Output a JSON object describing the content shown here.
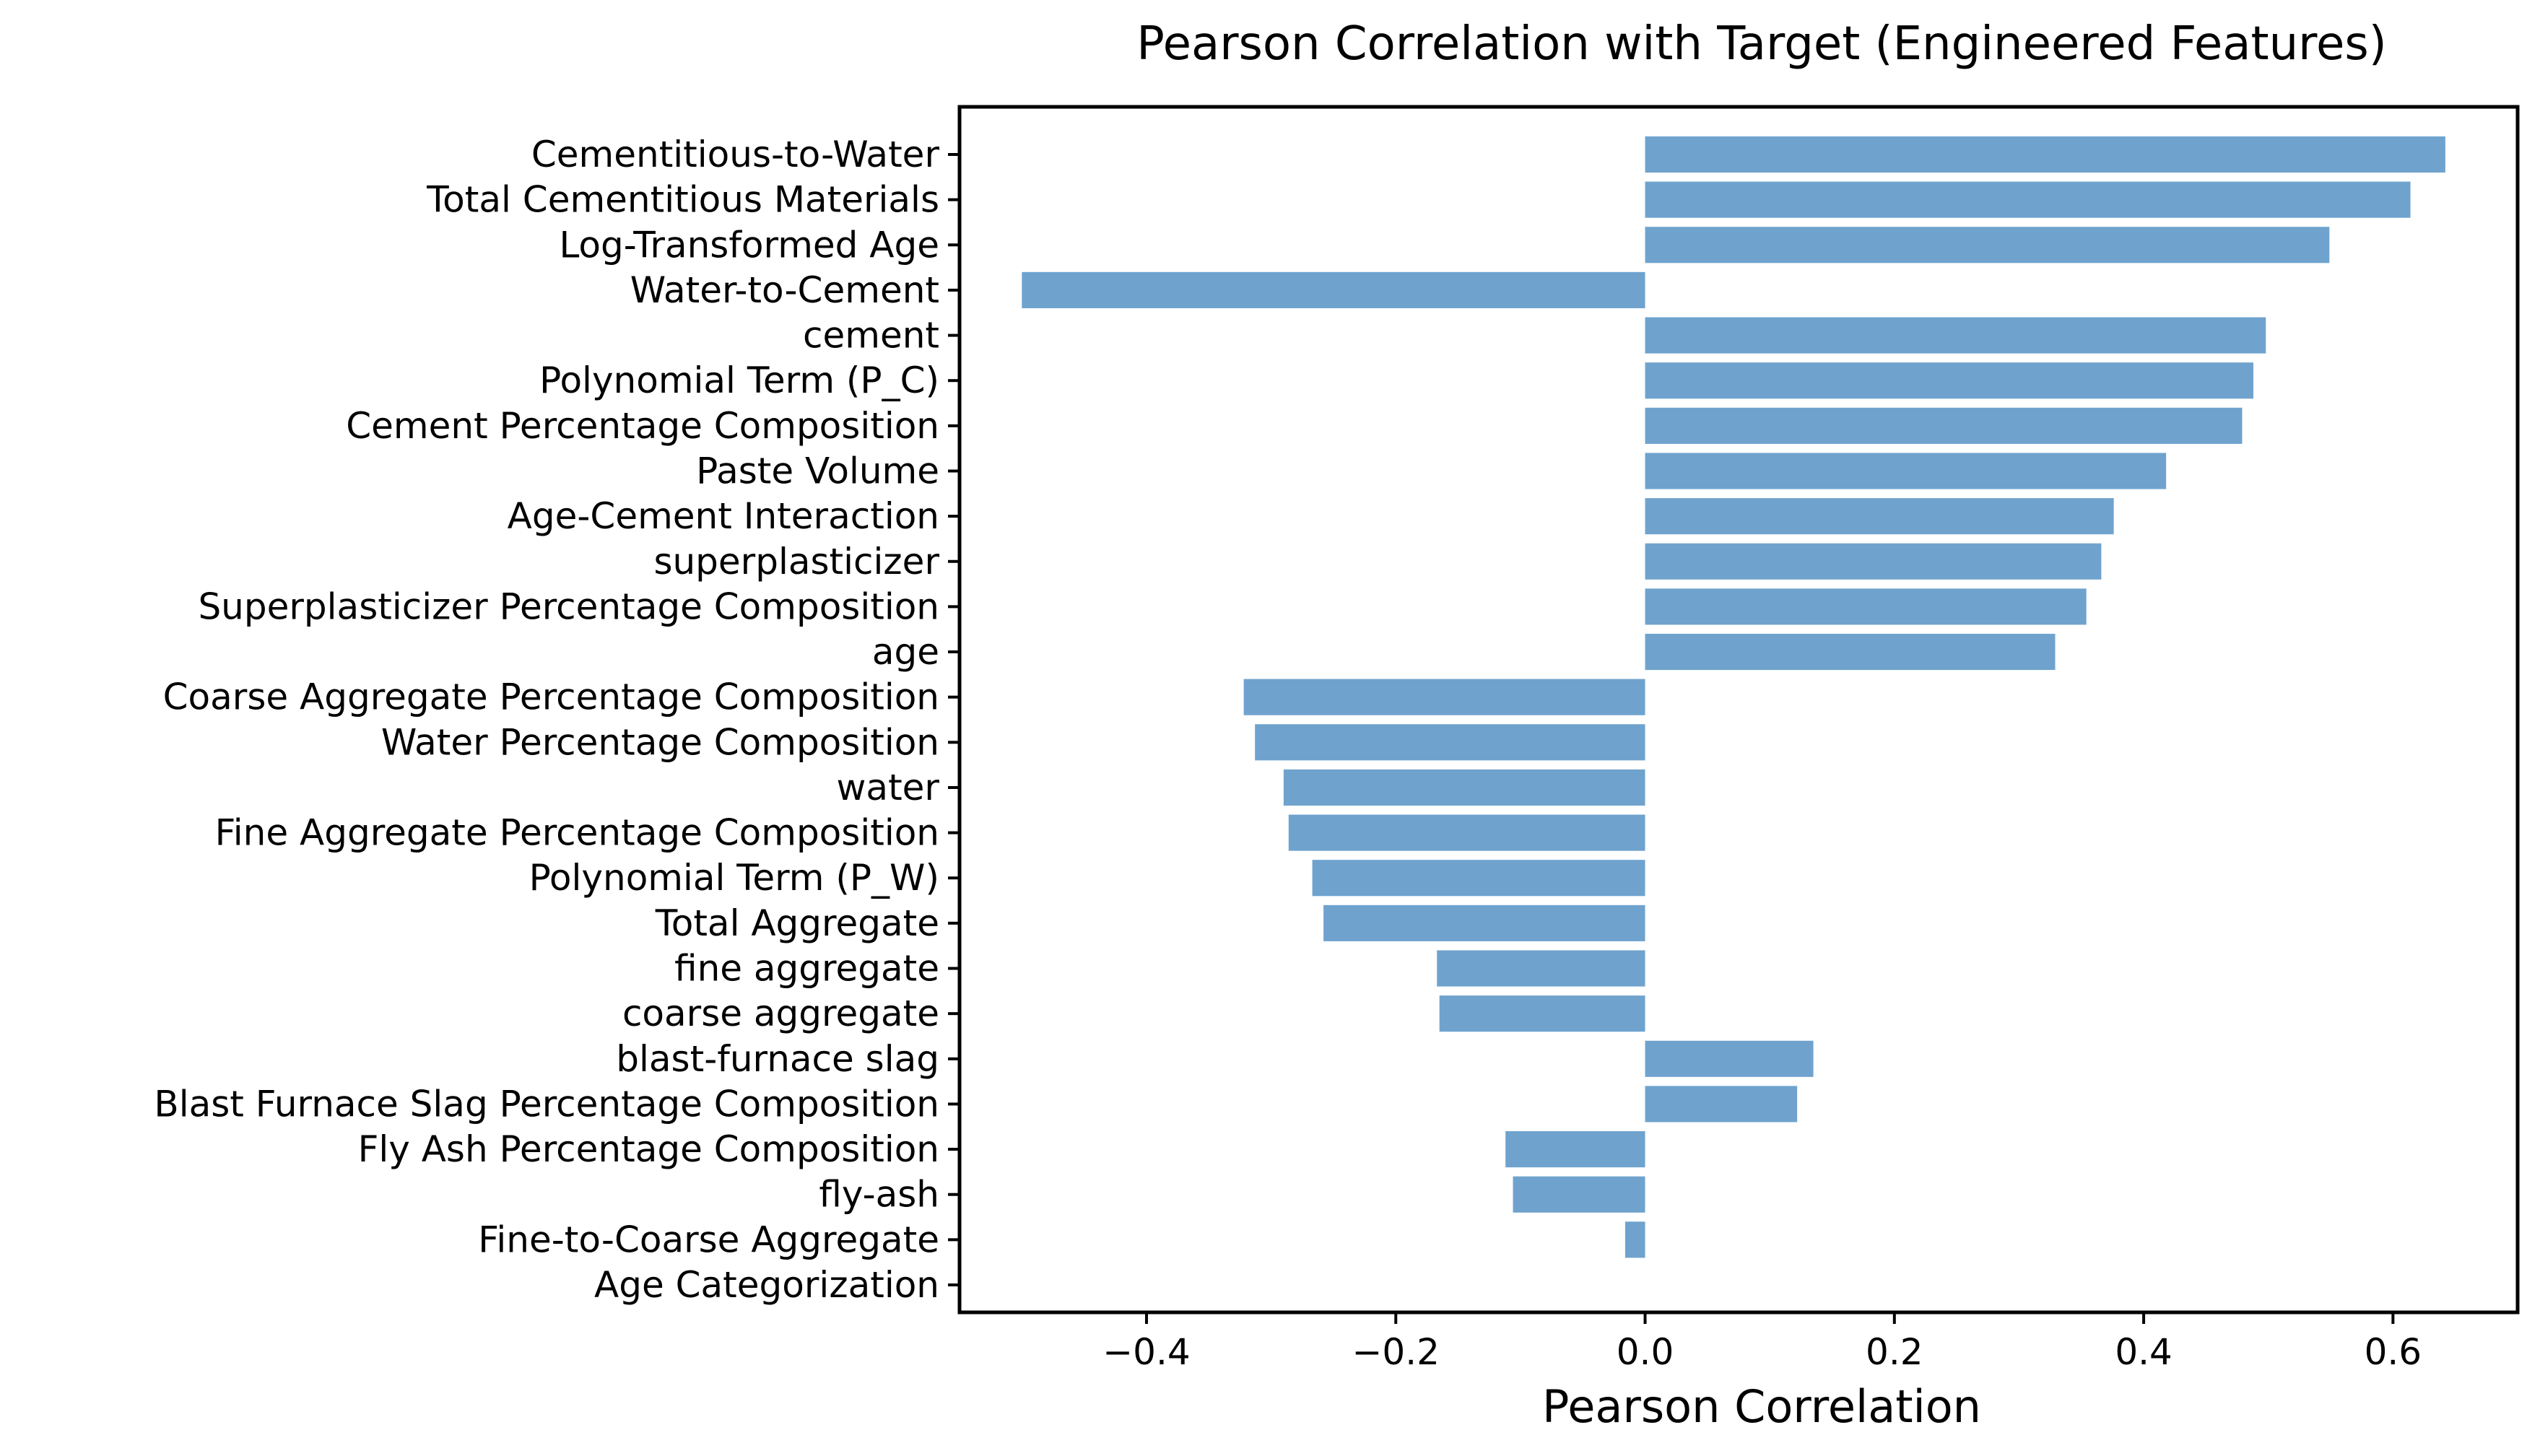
{
  "chart_data": {
    "type": "bar",
    "orientation": "horizontal",
    "title": "Pearson Correlation with Target (Engineered Features)",
    "xlabel": "Pearson Correlation",
    "ylabel": "",
    "xlim": [
      -0.55,
      0.7
    ],
    "xticks": [
      -0.4,
      -0.2,
      0.0,
      0.2,
      0.4,
      0.6
    ],
    "xtick_labels": [
      "−0.4",
      "−0.2",
      "0.0",
      "0.2",
      "0.4",
      "0.6"
    ],
    "grid": false,
    "bar_color": "#6fa3ce",
    "categories": [
      "Cementitious-to-Water",
      "Total Cementitious Materials",
      "Log-Transformed Age",
      "Water-to-Cement",
      "cement",
      "Polynomial Term (P_C)",
      "Cement Percentage Composition",
      "Paste Volume",
      "Age-Cement Interaction",
      "superplasticizer",
      "Superplasticizer Percentage Composition",
      "age",
      "Coarse Aggregate Percentage Composition",
      "Water Percentage Composition",
      "water",
      "Fine Aggregate Percentage Composition",
      "Polynomial Term (P_W)",
      "Total Aggregate",
      "fine aggregate",
      "coarse aggregate",
      "blast-furnace slag",
      "Blast Furnace Slag Percentage Composition",
      "Fly Ash Percentage Composition",
      "fly-ash",
      "Fine-to-Coarse Aggregate",
      "Age Categorization"
    ],
    "values": [
      0.642,
      0.614,
      0.549,
      -0.5,
      0.498,
      0.488,
      0.479,
      0.418,
      0.376,
      0.366,
      0.354,
      0.329,
      -0.322,
      -0.313,
      -0.29,
      -0.286,
      -0.267,
      -0.258,
      -0.167,
      -0.165,
      0.135,
      0.122,
      -0.112,
      -0.106,
      -0.016,
      0.0
    ]
  }
}
